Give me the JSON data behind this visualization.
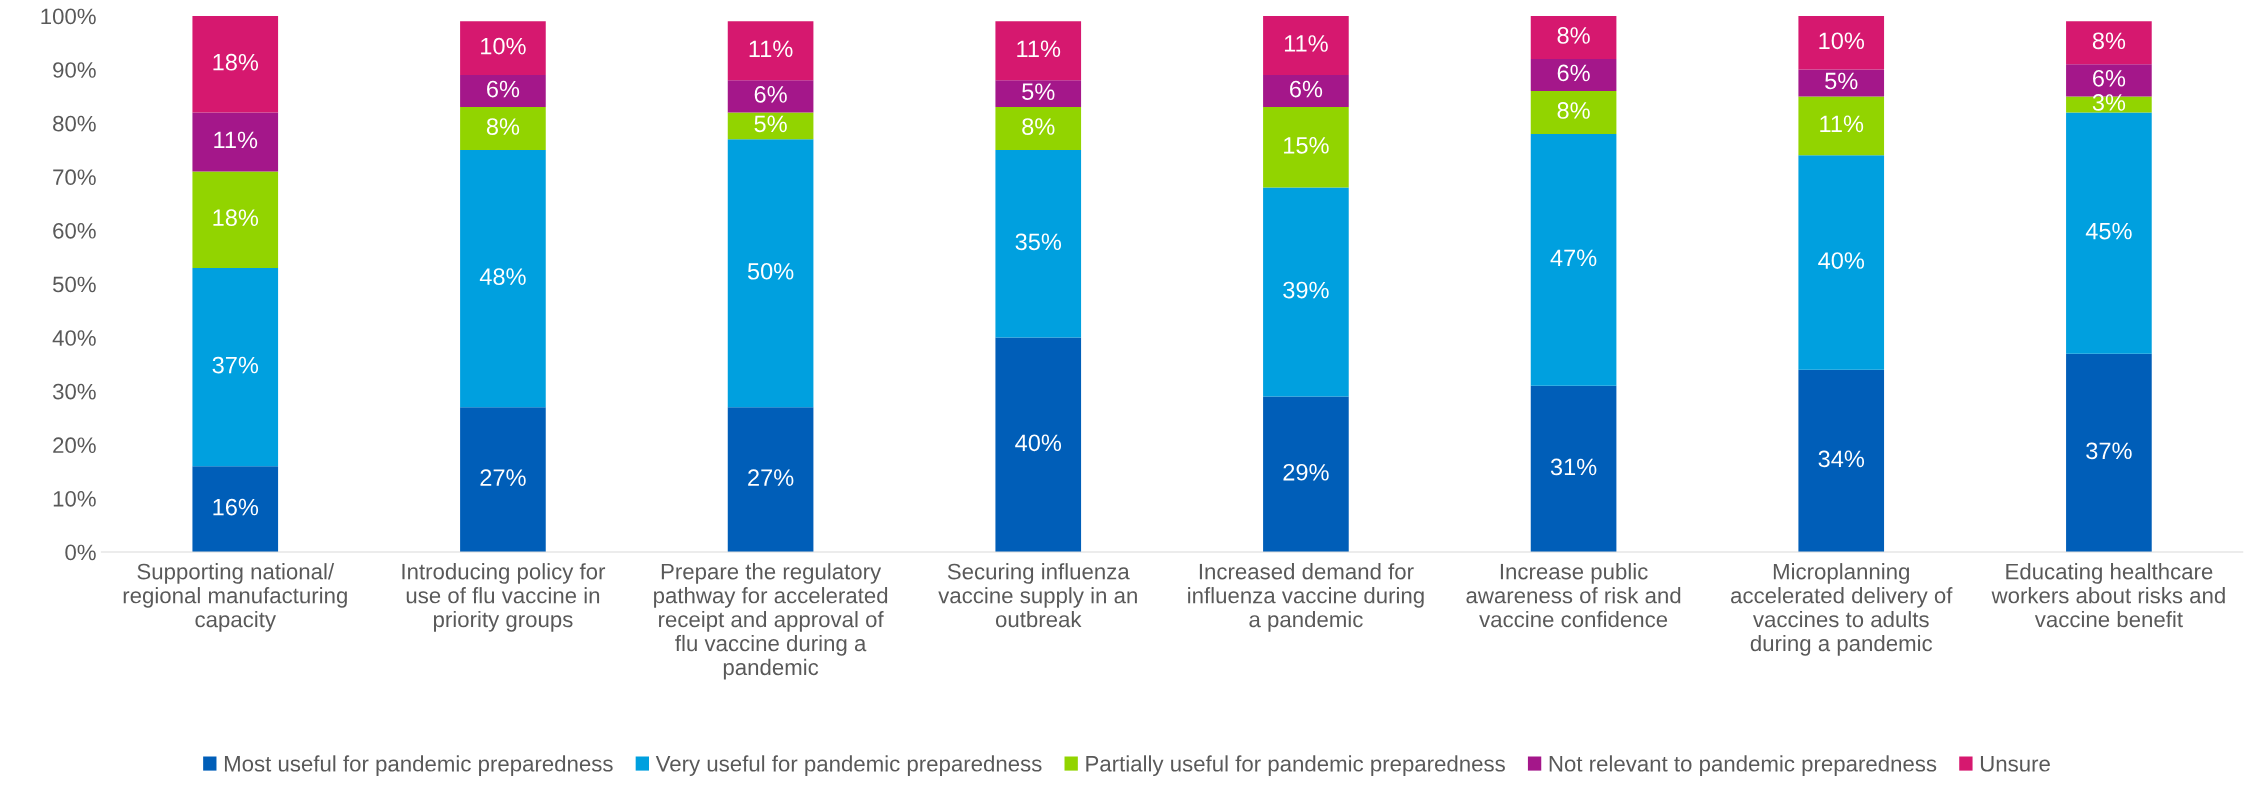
{
  "chart_data": {
    "type": "bar",
    "stacked": true,
    "legend": "bottom",
    "grid": false,
    "categories": [
      "Supporting national/ regional manufacturing capacity",
      "Introducing policy for use of flu vaccine in priority groups",
      "Prepare the regulatory pathway for accelerated receipt and approval of flu vaccine during a pandemic",
      "Securing influenza vaccine supply in an outbreak",
      "Increased demand for influenza vaccine during a pandemic",
      "Increase public awareness of risk and vaccine confidence",
      "Microplanning accelerated delivery of vaccines to adults during a pandemic",
      "Educating healthcare workers about risks and vaccine benefit"
    ],
    "ylim": [
      0,
      100
    ],
    "yticks": [
      {
        "value": 0,
        "label": "0%"
      },
      {
        "value": 10,
        "label": "10%"
      },
      {
        "value": 20,
        "label": "20%"
      },
      {
        "value": 30,
        "label": "30%"
      },
      {
        "value": 40,
        "label": "40%"
      },
      {
        "value": 50,
        "label": "50%"
      },
      {
        "value": 60,
        "label": "60%"
      },
      {
        "value": 70,
        "label": "70%"
      },
      {
        "value": 80,
        "label": "80%"
      },
      {
        "value": 90,
        "label": "90%"
      },
      {
        "value": 100,
        "label": "100%"
      }
    ],
    "series": [
      {
        "name": "Most useful for pandemic preparedness",
        "color": "#005eb8",
        "values": [
          16,
          27,
          27,
          40,
          29,
          31,
          34,
          37
        ],
        "value_labels": [
          "16%",
          "27%",
          "27%",
          "40%",
          "29%",
          "31%",
          "34%",
          "37%"
        ]
      },
      {
        "name": "Very useful for pandemic preparedness",
        "color": "#00a0df",
        "values": [
          37,
          48,
          50,
          35,
          39,
          47,
          40,
          45
        ],
        "value_labels": [
          "37%",
          "48%",
          "50%",
          "35%",
          "39%",
          "47%",
          "40%",
          "45%"
        ]
      },
      {
        "name": "Partially useful for pandemic preparedness",
        "color": "#92d400",
        "values": [
          18,
          8,
          5,
          8,
          15,
          8,
          11,
          3
        ],
        "value_labels": [
          "18%",
          "8%",
          "5%",
          "8%",
          "15%",
          "8%",
          "11%",
          "3%"
        ]
      },
      {
        "name": "Not relevant to pandemic preparedness",
        "color": "#a4178a",
        "values": [
          11,
          6,
          6,
          5,
          6,
          6,
          5,
          6
        ],
        "value_labels": [
          "11%",
          "6%",
          "6%",
          "5%",
          "6%",
          "6%",
          "5%",
          "6%"
        ]
      },
      {
        "name": "Unsure",
        "color": "#d6186f",
        "values": [
          18,
          10,
          11,
          11,
          11,
          8,
          10,
          8
        ],
        "value_labels": [
          "18%",
          "10%",
          "11%",
          "11%",
          "11%",
          "8%",
          "10%",
          "8%"
        ]
      }
    ]
  }
}
